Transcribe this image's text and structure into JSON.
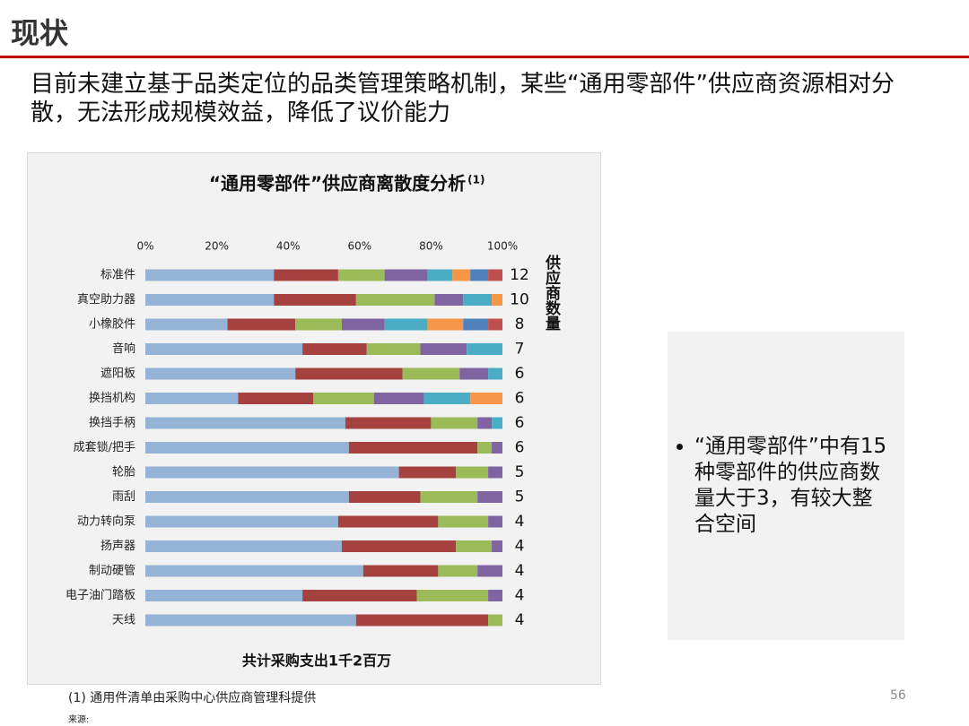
{
  "header": {
    "title": "现状"
  },
  "intro": "目前未建立基于品类定位的品类管理策略机制，某些“通用零部件”供应商资源相对分散，无法形成规模效益，降低了议价能力",
  "chart_data": {
    "type": "bar",
    "orientation": "horizontal",
    "stacked": true,
    "title": "“通用零部件”供应商离散度分析",
    "title_note": "(1)",
    "x_label": "共计采购支出1千2百万",
    "categories": [
      "标准件",
      "真空助力器",
      "小橡胶件",
      "音响",
      "遮阳板",
      "换挡机构",
      "换挡手柄",
      "成套锁/把手",
      "轮胎",
      "雨刮",
      "动力转向泵",
      "扬声器",
      "制动硬管",
      "电子油门踏板",
      "天线"
    ],
    "series": [
      {
        "color": "#95b3d7",
        "values": [
          36,
          36,
          23,
          44,
          42,
          26,
          56,
          57,
          71,
          57,
          54,
          55,
          61,
          44,
          59
        ]
      },
      {
        "color": "#a5423f",
        "values": [
          18,
          23,
          19,
          18,
          30,
          21,
          24,
          36,
          16,
          20,
          28,
          32,
          21,
          32,
          37
        ]
      },
      {
        "color": "#9bbb59",
        "values": [
          13,
          22,
          13,
          15,
          16,
          17,
          13,
          4,
          9,
          16,
          14,
          10,
          11,
          20,
          4
        ]
      },
      {
        "color": "#8064a2",
        "values": [
          12,
          8,
          12,
          13,
          8,
          14,
          4,
          3,
          4,
          7,
          4,
          3,
          7,
          4,
          null
        ]
      },
      {
        "color": "#4bacc6",
        "values": [
          7,
          8,
          12,
          10,
          4,
          13,
          3,
          null,
          null,
          null,
          null,
          null,
          null,
          null,
          null
        ]
      },
      {
        "color": "#f79646",
        "values": [
          5,
          3,
          10,
          null,
          null,
          9,
          null,
          null,
          null,
          null,
          null,
          null,
          null,
          null,
          null
        ]
      },
      {
        "color": "#4f81bd",
        "values": [
          5,
          null,
          7,
          null,
          null,
          null,
          null,
          null,
          null,
          null,
          null,
          null,
          null,
          null,
          null
        ]
      },
      {
        "color": "#c0504d",
        "values": [
          4,
          null,
          4,
          null,
          null,
          null,
          null,
          null,
          null,
          null,
          null,
          null,
          null,
          null,
          null
        ]
      }
    ],
    "xlim": [
      0,
      100
    ],
    "xticks": [
      {
        "value": 0,
        "label": "0%"
      },
      {
        "value": 20,
        "label": "20%"
      },
      {
        "value": 40,
        "label": "40%"
      },
      {
        "value": 60,
        "label": "60%"
      },
      {
        "value": 80,
        "label": "80%"
      },
      {
        "value": 100,
        "label": "100%"
      }
    ],
    "counts_label": "供应商数量",
    "counts": [
      12,
      10,
      8,
      7,
      6,
      6,
      6,
      6,
      5,
      5,
      4,
      4,
      4,
      4,
      4
    ]
  },
  "bullet": "“通用零部件”中有15种零部件的供应商数量大于3，有较大整合空间",
  "footnote": "(1) 通用件清单由采购中心供应商管理科提供",
  "source": "来源:",
  "page_number": "56"
}
